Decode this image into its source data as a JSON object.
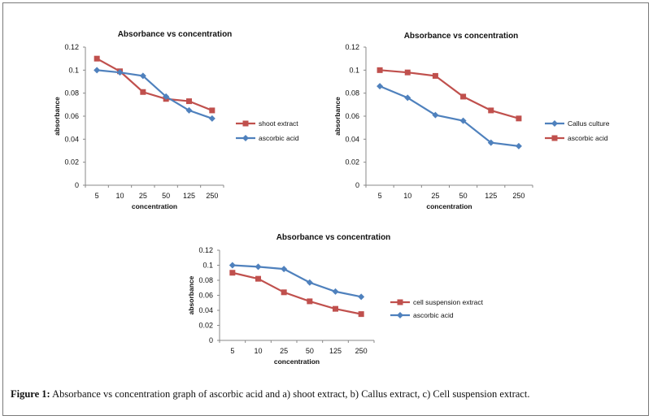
{
  "caption": {
    "label": "Figure 1:",
    "text": "Absorbance vs concentration graph of ascorbic acid and a) shoot extract, b) Callus extract, c) Cell suspension extract."
  },
  "chart_data": [
    {
      "type": "line",
      "title": "Absorbance vs concentration",
      "xlabel": "concentration",
      "ylabel": "absorbance",
      "categories": [
        "5",
        "10",
        "25",
        "50",
        "125",
        "250"
      ],
      "ylim": [
        0,
        0.12
      ],
      "yticks": [
        "0",
        "0.02",
        "0.04",
        "0.06",
        "0.08",
        "0.1",
        "0.12"
      ],
      "legend_position": "right",
      "series": [
        {
          "name": "shoot extract",
          "values": [
            0.11,
            0.099,
            0.081,
            0.075,
            0.073,
            0.065
          ],
          "color": "#c0504d",
          "marker": "square"
        },
        {
          "name": "ascorbic acid",
          "values": [
            0.1,
            0.098,
            0.095,
            0.077,
            0.065,
            0.058
          ],
          "color": "#4f81bd",
          "marker": "diamond"
        }
      ]
    },
    {
      "type": "line",
      "title": "Absorbance vs concentration",
      "xlabel": "concentration",
      "ylabel": "absorbance",
      "categories": [
        "5",
        "10",
        "25",
        "50",
        "125",
        "250"
      ],
      "ylim": [
        0,
        0.12
      ],
      "yticks": [
        "0",
        "0.02",
        "0.04",
        "0.06",
        "0.08",
        "0.1",
        "0.12"
      ],
      "legend_position": "right",
      "series": [
        {
          "name": "Callus culture",
          "values": [
            0.086,
            0.076,
            0.061,
            0.056,
            0.037,
            0.034
          ],
          "color": "#4f81bd",
          "marker": "diamond"
        },
        {
          "name": "ascorbic acid",
          "values": [
            0.1,
            0.098,
            0.095,
            0.077,
            0.065,
            0.058
          ],
          "color": "#c0504d",
          "marker": "square"
        }
      ]
    },
    {
      "type": "line",
      "title": "Absorbance vs concentration",
      "xlabel": "concentration",
      "ylabel": "absorbance",
      "categories": [
        "5",
        "10",
        "25",
        "50",
        "125",
        "250"
      ],
      "ylim": [
        0,
        0.12
      ],
      "yticks": [
        "0",
        "0.02",
        "0.04",
        "0.06",
        "0.08",
        "0.1",
        "0.12"
      ],
      "legend_position": "right",
      "series": [
        {
          "name": "cell suspension extract",
          "values": [
            0.09,
            0.082,
            0.064,
            0.052,
            0.042,
            0.035
          ],
          "color": "#c0504d",
          "marker": "square"
        },
        {
          "name": "ascorbic acid",
          "values": [
            0.1,
            0.098,
            0.095,
            0.077,
            0.065,
            0.058
          ],
          "color": "#4f81bd",
          "marker": "diamond"
        }
      ]
    }
  ]
}
